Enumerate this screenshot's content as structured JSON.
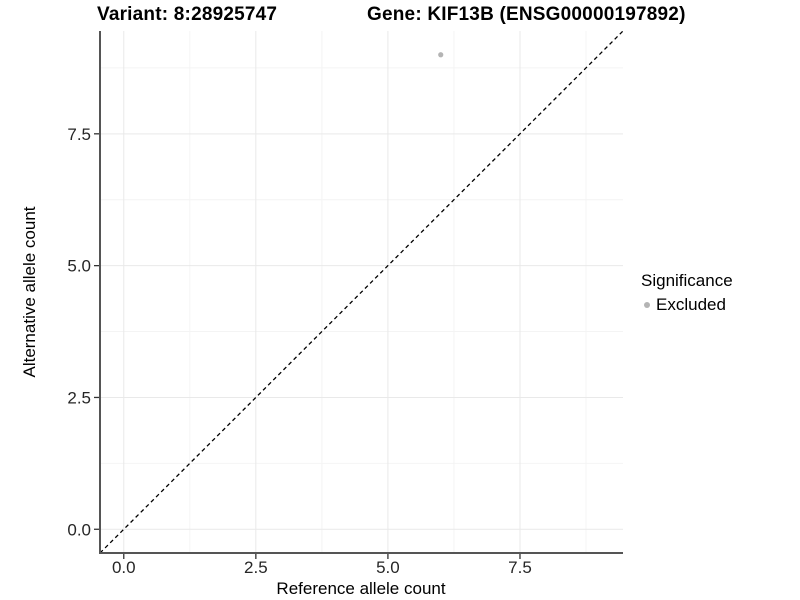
{
  "header": {
    "variant_title": "Variant: 8:28925747",
    "gene_title": "Gene: KIF13B (ENSG00000197892)"
  },
  "chart_data": {
    "type": "scatter",
    "xlabel": "Reference allele count",
    "ylabel": "Alternative allele count",
    "xlim": [
      -0.45,
      9.45
    ],
    "ylim": [
      -0.45,
      9.45
    ],
    "x_ticks": {
      "values": [
        0,
        2.5,
        5,
        7.5
      ],
      "labels": [
        "0.0",
        "2.5",
        "5.0",
        "7.5"
      ]
    },
    "y_ticks": {
      "values": [
        0,
        2.5,
        5,
        7.5
      ],
      "labels": [
        "0.0",
        "2.5",
        "5.0",
        "7.5"
      ]
    },
    "minor_ticks": [
      1.25,
      3.75,
      6.25,
      8.75
    ],
    "grid": true,
    "points": [
      {
        "x": 6,
        "y": 9,
        "series": "Excluded",
        "color": "#b4b4b4"
      }
    ],
    "reference_line": {
      "slope": 1,
      "intercept": 0,
      "style": "dashed",
      "color": "#000000"
    },
    "legend": {
      "title": "Significance",
      "position": "right",
      "entries": [
        {
          "label": "Excluded",
          "color": "#b4b4b4"
        }
      ]
    },
    "colors": {
      "background": "#ffffff",
      "grid_major": "#e9e9e9",
      "grid_minor": "#f4f4f4",
      "axis_line": "#555555",
      "tick_mark": "#333333",
      "axis_text": "#262626",
      "point": "#b4b4b4"
    }
  }
}
